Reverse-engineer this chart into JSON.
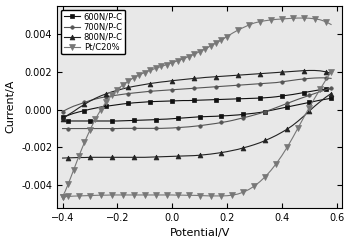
{
  "xlabel": "Potential/V",
  "ylabel": "Current/A",
  "xlim": [
    -0.42,
    0.62
  ],
  "ylim": [
    -0.0052,
    0.0055
  ],
  "xticks": [
    -0.4,
    -0.2,
    0.0,
    0.2,
    0.4,
    0.6
  ],
  "yticks": [
    -0.004,
    -0.002,
    0.0,
    0.002,
    0.004
  ],
  "series": [
    {
      "label": "600N/P-C",
      "color": "#111111",
      "marker": "s",
      "markersize": 2.5,
      "linewidth": 0.8,
      "markevery": 4,
      "upper_x": [
        -0.4,
        -0.38,
        -0.36,
        -0.34,
        -0.32,
        -0.3,
        -0.28,
        -0.26,
        -0.24,
        -0.22,
        -0.2,
        -0.18,
        -0.16,
        -0.14,
        -0.12,
        -0.1,
        -0.08,
        -0.06,
        -0.04,
        -0.02,
        0.0,
        0.02,
        0.04,
        0.06,
        0.08,
        0.1,
        0.12,
        0.14,
        0.16,
        0.18,
        0.2,
        0.22,
        0.24,
        0.26,
        0.28,
        0.3,
        0.32,
        0.34,
        0.36,
        0.38,
        0.4,
        0.42,
        0.44,
        0.46,
        0.48,
        0.5,
        0.52,
        0.54,
        0.56,
        0.58
      ],
      "upper_y": [
        -0.0004,
        -0.0003,
        -0.0002,
        -0.00012,
        -5e-05,
        2e-05,
        8e-05,
        0.00014,
        0.00018,
        0.00022,
        0.00026,
        0.0003,
        0.00033,
        0.00036,
        0.00038,
        0.0004,
        0.00042,
        0.00043,
        0.00044,
        0.00045,
        0.00046,
        0.00047,
        0.00048,
        0.00048,
        0.00049,
        0.0005,
        0.00051,
        0.00052,
        0.00053,
        0.00054,
        0.00055,
        0.00056,
        0.00057,
        0.00058,
        0.00059,
        0.0006,
        0.00061,
        0.00063,
        0.00065,
        0.00068,
        0.00072,
        0.00076,
        0.0008,
        0.00085,
        0.0009,
        0.00095,
        0.001,
        0.00105,
        0.00108,
        0.0011
      ],
      "lower_x": [
        0.58,
        0.56,
        0.54,
        0.52,
        0.5,
        0.48,
        0.46,
        0.44,
        0.42,
        0.4,
        0.38,
        0.36,
        0.34,
        0.32,
        0.3,
        0.28,
        0.26,
        0.24,
        0.22,
        0.2,
        0.18,
        0.16,
        0.14,
        0.12,
        0.1,
        0.08,
        0.06,
        0.04,
        0.02,
        0.0,
        -0.02,
        -0.04,
        -0.06,
        -0.08,
        -0.1,
        -0.12,
        -0.14,
        -0.16,
        -0.18,
        -0.2,
        -0.22,
        -0.24,
        -0.26,
        -0.28,
        -0.3,
        -0.32,
        -0.34,
        -0.36,
        -0.38,
        -0.4
      ],
      "lower_y": [
        0.0006,
        0.00055,
        0.0005,
        0.00044,
        0.00038,
        0.00032,
        0.00026,
        0.0002,
        0.00014,
        8e-05,
        2e-05,
        -4e-05,
        -0.0001,
        -0.00015,
        -0.00019,
        -0.00022,
        -0.00025,
        -0.00028,
        -0.0003,
        -0.00032,
        -0.00033,
        -0.00035,
        -0.00036,
        -0.00037,
        -0.00038,
        -0.0004,
        -0.00042,
        -0.00044,
        -0.00046,
        -0.00048,
        -0.0005,
        -0.00051,
        -0.00053,
        -0.00054,
        -0.00055,
        -0.00056,
        -0.00057,
        -0.00058,
        -0.00059,
        -0.0006,
        -0.0006,
        -0.0006,
        -0.0006,
        -0.0006,
        -0.0006,
        -0.0006,
        -0.0006,
        -0.0006,
        -0.0006,
        -0.0006
      ]
    },
    {
      "label": "700N/P-C",
      "color": "#555555",
      "marker": "o",
      "markersize": 2.5,
      "linewidth": 0.8,
      "markevery": 4,
      "upper_x": [
        -0.4,
        -0.38,
        -0.36,
        -0.34,
        -0.32,
        -0.3,
        -0.28,
        -0.26,
        -0.24,
        -0.22,
        -0.2,
        -0.18,
        -0.16,
        -0.14,
        -0.12,
        -0.1,
        -0.08,
        -0.06,
        -0.04,
        -0.02,
        0.0,
        0.02,
        0.04,
        0.06,
        0.08,
        0.1,
        0.12,
        0.14,
        0.16,
        0.18,
        0.2,
        0.22,
        0.24,
        0.26,
        0.28,
        0.3,
        0.32,
        0.34,
        0.36,
        0.38,
        0.4,
        0.42,
        0.44,
        0.46,
        0.48,
        0.5,
        0.52,
        0.54,
        0.56,
        0.58
      ],
      "upper_y": [
        -0.0001,
        5e-05,
        0.00018,
        0.00028,
        0.00038,
        0.00048,
        0.00056,
        0.00063,
        0.00068,
        0.00073,
        0.00077,
        0.00081,
        0.00085,
        0.00088,
        0.00091,
        0.00094,
        0.00097,
        0.00099,
        0.00101,
        0.00103,
        0.00105,
        0.00107,
        0.00109,
        0.00111,
        0.00113,
        0.00115,
        0.00117,
        0.00119,
        0.00121,
        0.00123,
        0.00125,
        0.00127,
        0.00129,
        0.00131,
        0.00133,
        0.00135,
        0.00137,
        0.00139,
        0.00141,
        0.00143,
        0.00147,
        0.00151,
        0.00155,
        0.00159,
        0.00162,
        0.00165,
        0.00167,
        0.00168,
        0.00168,
        0.00165
      ],
      "lower_x": [
        0.58,
        0.56,
        0.54,
        0.52,
        0.5,
        0.48,
        0.46,
        0.44,
        0.42,
        0.4,
        0.38,
        0.36,
        0.34,
        0.32,
        0.3,
        0.28,
        0.26,
        0.24,
        0.22,
        0.2,
        0.18,
        0.16,
        0.14,
        0.12,
        0.1,
        0.08,
        0.06,
        0.04,
        0.02,
        0.0,
        -0.02,
        -0.04,
        -0.06,
        -0.08,
        -0.1,
        -0.12,
        -0.14,
        -0.16,
        -0.18,
        -0.2,
        -0.22,
        -0.24,
        -0.26,
        -0.28,
        -0.3,
        -0.32,
        -0.34,
        -0.36,
        -0.38,
        -0.4
      ],
      "lower_y": [
        0.00115,
        0.00105,
        0.00095,
        0.00085,
        0.00075,
        0.00065,
        0.00055,
        0.00044,
        0.00033,
        0.00022,
        0.00011,
        0.0,
        -0.0001,
        -0.0002,
        -0.00028,
        -0.00036,
        -0.00043,
        -0.0005,
        -0.00057,
        -0.00063,
        -0.00068,
        -0.00073,
        -0.00077,
        -0.00081,
        -0.00085,
        -0.00088,
        -0.00091,
        -0.00093,
        -0.00095,
        -0.00097,
        -0.00098,
        -0.00099,
        -0.00099,
        -0.00099,
        -0.00099,
        -0.00099,
        -0.00099,
        -0.00099,
        -0.00099,
        -0.001,
        -0.001,
        -0.001,
        -0.001,
        -0.001,
        -0.001,
        -0.001,
        -0.001,
        -0.001,
        -0.001,
        -0.001
      ]
    },
    {
      "label": "800N/P-C",
      "color": "#222222",
      "marker": "^",
      "markersize": 3.5,
      "linewidth": 0.8,
      "markevery": 4,
      "upper_x": [
        -0.4,
        -0.38,
        -0.36,
        -0.34,
        -0.32,
        -0.3,
        -0.28,
        -0.26,
        -0.24,
        -0.22,
        -0.2,
        -0.18,
        -0.16,
        -0.14,
        -0.12,
        -0.1,
        -0.08,
        -0.06,
        -0.04,
        -0.02,
        0.0,
        0.02,
        0.04,
        0.06,
        0.08,
        0.1,
        0.12,
        0.14,
        0.16,
        0.18,
        0.2,
        0.22,
        0.24,
        0.26,
        0.28,
        0.3,
        0.32,
        0.34,
        0.36,
        0.38,
        0.4,
        0.42,
        0.44,
        0.46,
        0.48,
        0.5,
        0.52,
        0.54,
        0.56,
        0.58
      ],
      "upper_y": [
        -0.0005,
        -0.00028,
        -0.0001,
        0.0001,
        0.00028,
        0.00045,
        0.0006,
        0.00073,
        0.00084,
        0.00094,
        0.00102,
        0.0011,
        0.00117,
        0.00123,
        0.00128,
        0.00133,
        0.00138,
        0.00142,
        0.00146,
        0.00149,
        0.00153,
        0.00156,
        0.00159,
        0.00162,
        0.00165,
        0.00167,
        0.0017,
        0.00172,
        0.00174,
        0.00176,
        0.00178,
        0.0018,
        0.00182,
        0.00184,
        0.00186,
        0.00188,
        0.0019,
        0.00192,
        0.00194,
        0.00196,
        0.00198,
        0.002,
        0.00202,
        0.00204,
        0.00206,
        0.00207,
        0.00207,
        0.00205,
        0.002,
        0.00192
      ],
      "lower_x": [
        0.58,
        0.56,
        0.54,
        0.52,
        0.5,
        0.48,
        0.46,
        0.44,
        0.42,
        0.4,
        0.38,
        0.36,
        0.34,
        0.32,
        0.3,
        0.28,
        0.26,
        0.24,
        0.22,
        0.2,
        0.18,
        0.16,
        0.14,
        0.12,
        0.1,
        0.08,
        0.06,
        0.04,
        0.02,
        0.0,
        -0.02,
        -0.04,
        -0.06,
        -0.08,
        -0.1,
        -0.12,
        -0.14,
        -0.16,
        -0.18,
        -0.2,
        -0.22,
        -0.24,
        -0.26,
        -0.28,
        -0.3,
        -0.32,
        -0.34,
        -0.36,
        -0.38,
        -0.4
      ],
      "lower_y": [
        0.00085,
        0.00065,
        0.00042,
        0.00018,
        -8e-05,
        -0.00035,
        -0.0006,
        -0.00083,
        -0.00103,
        -0.0012,
        -0.00136,
        -0.0015,
        -0.00163,
        -0.00175,
        -0.00185,
        -0.00194,
        -0.00202,
        -0.0021,
        -0.00216,
        -0.00222,
        -0.00227,
        -0.00231,
        -0.00235,
        -0.00238,
        -0.00241,
        -0.00243,
        -0.00244,
        -0.00245,
        -0.00246,
        -0.00247,
        -0.00248,
        -0.00249,
        -0.0025,
        -0.00251,
        -0.00252,
        -0.00252,
        -0.00252,
        -0.00252,
        -0.00252,
        -0.00252,
        -0.00252,
        -0.00252,
        -0.00252,
        -0.00252,
        -0.00252,
        -0.00253,
        -0.00253,
        -0.00254,
        -0.00255,
        -0.00256
      ]
    },
    {
      "label": "Pt/C20%",
      "color": "#777777",
      "marker": "v",
      "markersize": 4.0,
      "linewidth": 0.8,
      "markevery": 2,
      "upper_x": [
        -0.4,
        -0.39,
        -0.38,
        -0.37,
        -0.36,
        -0.35,
        -0.34,
        -0.33,
        -0.32,
        -0.31,
        -0.3,
        -0.29,
        -0.28,
        -0.27,
        -0.26,
        -0.25,
        -0.24,
        -0.23,
        -0.22,
        -0.21,
        -0.2,
        -0.19,
        -0.18,
        -0.17,
        -0.16,
        -0.15,
        -0.14,
        -0.13,
        -0.12,
        -0.11,
        -0.1,
        -0.09,
        -0.08,
        -0.07,
        -0.06,
        -0.05,
        -0.04,
        -0.03,
        -0.02,
        -0.01,
        0.0,
        0.01,
        0.02,
        0.03,
        0.04,
        0.05,
        0.06,
        0.07,
        0.08,
        0.09,
        0.1,
        0.11,
        0.12,
        0.13,
        0.14,
        0.15,
        0.16,
        0.17,
        0.18,
        0.19,
        0.2,
        0.22,
        0.24,
        0.26,
        0.28,
        0.3,
        0.32,
        0.34,
        0.36,
        0.38,
        0.4,
        0.42,
        0.44,
        0.46,
        0.48,
        0.5,
        0.52,
        0.54,
        0.56,
        0.58
      ],
      "upper_y": [
        -0.0046,
        -0.0043,
        -0.00395,
        -0.00358,
        -0.0032,
        -0.00282,
        -0.00244,
        -0.00208,
        -0.00173,
        -0.0014,
        -0.00108,
        -0.00078,
        -0.0005,
        -0.00024,
        0.0,
        0.00022,
        0.00042,
        0.0006,
        0.00077,
        0.00092,
        0.00106,
        0.00119,
        0.0013,
        0.00141,
        0.00151,
        0.0016,
        0.00168,
        0.00176,
        0.00183,
        0.0019,
        0.00196,
        0.00202,
        0.00208,
        0.00213,
        0.00218,
        0.00223,
        0.00228,
        0.00233,
        0.00238,
        0.00243,
        0.00248,
        0.00253,
        0.00258,
        0.00263,
        0.00268,
        0.00274,
        0.0028,
        0.00286,
        0.00292,
        0.00299,
        0.00306,
        0.00313,
        0.0032,
        0.00328,
        0.00336,
        0.00344,
        0.00352,
        0.0036,
        0.00368,
        0.00377,
        0.00386,
        0.00404,
        0.0042,
        0.00434,
        0.00447,
        0.00458,
        0.00465,
        0.0047,
        0.00474,
        0.00477,
        0.00479,
        0.00481,
        0.00483,
        0.00484,
        0.00484,
        0.00483,
        0.0048,
        0.00475,
        0.00465,
        0.0045
      ],
      "lower_x": [
        0.58,
        0.56,
        0.54,
        0.52,
        0.5,
        0.48,
        0.46,
        0.44,
        0.42,
        0.4,
        0.38,
        0.36,
        0.34,
        0.32,
        0.3,
        0.28,
        0.26,
        0.24,
        0.22,
        0.2,
        0.18,
        0.16,
        0.14,
        0.12,
        0.1,
        0.08,
        0.06,
        0.04,
        0.02,
        0.0,
        -0.02,
        -0.04,
        -0.06,
        -0.08,
        -0.1,
        -0.12,
        -0.14,
        -0.16,
        -0.18,
        -0.2,
        -0.22,
        -0.24,
        -0.26,
        -0.28,
        -0.3,
        -0.32,
        -0.34,
        -0.36,
        -0.38,
        -0.39,
        -0.4
      ],
      "lower_y": [
        0.002,
        0.00155,
        0.00108,
        0.0006,
        0.0001,
        -0.00042,
        -0.00095,
        -0.00148,
        -0.00198,
        -0.00244,
        -0.00285,
        -0.00322,
        -0.00354,
        -0.00381,
        -0.00404,
        -0.00422,
        -0.00436,
        -0.00446,
        -0.00452,
        -0.00455,
        -0.00456,
        -0.00456,
        -0.00456,
        -0.00455,
        -0.00454,
        -0.00453,
        -0.00453,
        -0.00452,
        -0.00452,
        -0.00451,
        -0.00451,
        -0.00451,
        -0.00451,
        -0.00451,
        -0.00451,
        -0.00451,
        -0.00451,
        -0.00451,
        -0.00451,
        -0.00451,
        -0.00451,
        -0.00452,
        -0.00452,
        -0.00453,
        -0.00454,
        -0.00455,
        -0.00456,
        -0.00457,
        -0.00459,
        -0.0046,
        -0.00462
      ]
    }
  ],
  "legend_loc": "upper left",
  "legend_fontsize": 6,
  "axis_fontsize": 8,
  "tick_fontsize": 7,
  "figsize": [
    3.5,
    2.44
  ],
  "dpi": 100
}
